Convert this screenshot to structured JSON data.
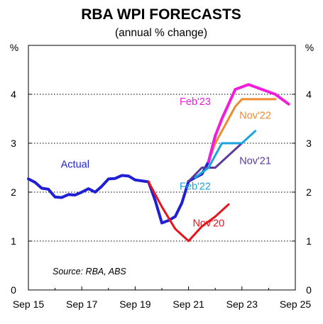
{
  "chart_data": {
    "type": "line",
    "title": "RBA WPI FORECASTS",
    "subtitle": "(annual % change)",
    "unit_left": "%",
    "unit_right": "%",
    "source": "Source: RBA, ABS",
    "x_tick_labels": [
      "Sep 15",
      "Sep 17",
      "Sep 19",
      "Sep 21",
      "Sep 23",
      "Sep 25"
    ],
    "x_ticks": [
      "2015-09",
      "2017-09",
      "2019-09",
      "2021-09",
      "2023-09",
      "2025-09"
    ],
    "xlim": [
      "2015-09",
      "2025-09"
    ],
    "ylim": [
      0,
      5
    ],
    "y_ticks": [
      0,
      1,
      2,
      3,
      4
    ],
    "y_tick_labels": [
      "0",
      "1",
      "2",
      "3",
      "4"
    ],
    "grid": "horizontal dotted",
    "series": [
      {
        "name": "Actual",
        "color": "#1f1fd6",
        "width": 4,
        "x": [
          "2015-09",
          "2015-12",
          "2016-03",
          "2016-06",
          "2016-09",
          "2016-12",
          "2017-03",
          "2017-06",
          "2017-09",
          "2017-12",
          "2018-03",
          "2018-06",
          "2018-09",
          "2018-12",
          "2019-03",
          "2019-06",
          "2019-09",
          "2019-12",
          "2020-03",
          "2020-06",
          "2020-09",
          "2020-12",
          "2021-03",
          "2021-06",
          "2021-09",
          "2021-12",
          "2022-03",
          "2022-06",
          "2022-09"
        ],
        "y": [
          2.27,
          2.2,
          2.08,
          2.06,
          1.9,
          1.89,
          1.95,
          1.94,
          2.0,
          2.07,
          2.0,
          2.12,
          2.27,
          2.28,
          2.34,
          2.33,
          2.25,
          2.23,
          2.21,
          1.83,
          1.37,
          1.42,
          1.5,
          1.78,
          2.22,
          2.3,
          2.37,
          2.62,
          3.15
        ]
      },
      {
        "name": "Nov'20",
        "color": "#e8141b",
        "width": 3,
        "x": [
          "2020-03",
          "2020-09",
          "2021-03",
          "2021-09",
          "2022-03",
          "2022-09",
          "2023-03"
        ],
        "y": [
          2.21,
          1.7,
          1.25,
          1.0,
          1.3,
          1.5,
          1.75
        ]
      },
      {
        "name": "Nov'21",
        "color": "#5b3a9a",
        "width": 3,
        "x": [
          "2021-09",
          "2022-03",
          "2022-09",
          "2023-03",
          "2023-09"
        ],
        "y": [
          2.22,
          2.5,
          2.5,
          2.75,
          3.0
        ]
      },
      {
        "name": "Feb'22",
        "color": "#1aa3e0",
        "width": 3,
        "x": [
          "2021-12",
          "2022-06",
          "2022-09",
          "2022-12",
          "2023-03",
          "2023-09",
          "2024-03"
        ],
        "y": [
          2.3,
          2.5,
          2.75,
          3.0,
          3.0,
          3.0,
          3.25
        ]
      },
      {
        "name": "Nov'22",
        "color": "#f08a30",
        "width": 3,
        "x": [
          "2022-06",
          "2022-09",
          "2022-12",
          "2023-03",
          "2023-06",
          "2023-09",
          "2023-12",
          "2024-06",
          "2024-12"
        ],
        "y": [
          2.62,
          3.0,
          3.25,
          3.5,
          3.75,
          3.9,
          3.9,
          3.9,
          3.9
        ]
      },
      {
        "name": "Feb'23",
        "color": "#f01ed8",
        "width": 4,
        "x": [
          "2022-06",
          "2022-09",
          "2022-12",
          "2023-03",
          "2023-06",
          "2023-09",
          "2023-12",
          "2024-06",
          "2024-12",
          "2025-06"
        ],
        "y": [
          2.62,
          3.15,
          3.5,
          3.8,
          4.1,
          4.15,
          4.2,
          4.1,
          4.0,
          3.8
        ]
      }
    ],
    "annotations": [
      {
        "text": "Actual",
        "color": "#1f1fd6",
        "x": "2017-06",
        "y": 2.5
      },
      {
        "text": "Feb'23",
        "color": "#f01ed8",
        "x": "2021-12",
        "y": 3.78
      },
      {
        "text": "Nov'22",
        "color": "#f08a30",
        "x": "2024-03",
        "y": 3.5
      },
      {
        "text": "Nov'21",
        "color": "#5b3a9a",
        "x": "2024-03",
        "y": 2.57
      },
      {
        "text": "Feb'22",
        "color": "#1aa3e0",
        "x": "2021-12",
        "y": 2.05
      },
      {
        "text": "Nov'20",
        "color": "#e8141b",
        "x": "2022-06",
        "y": 1.3
      }
    ]
  }
}
